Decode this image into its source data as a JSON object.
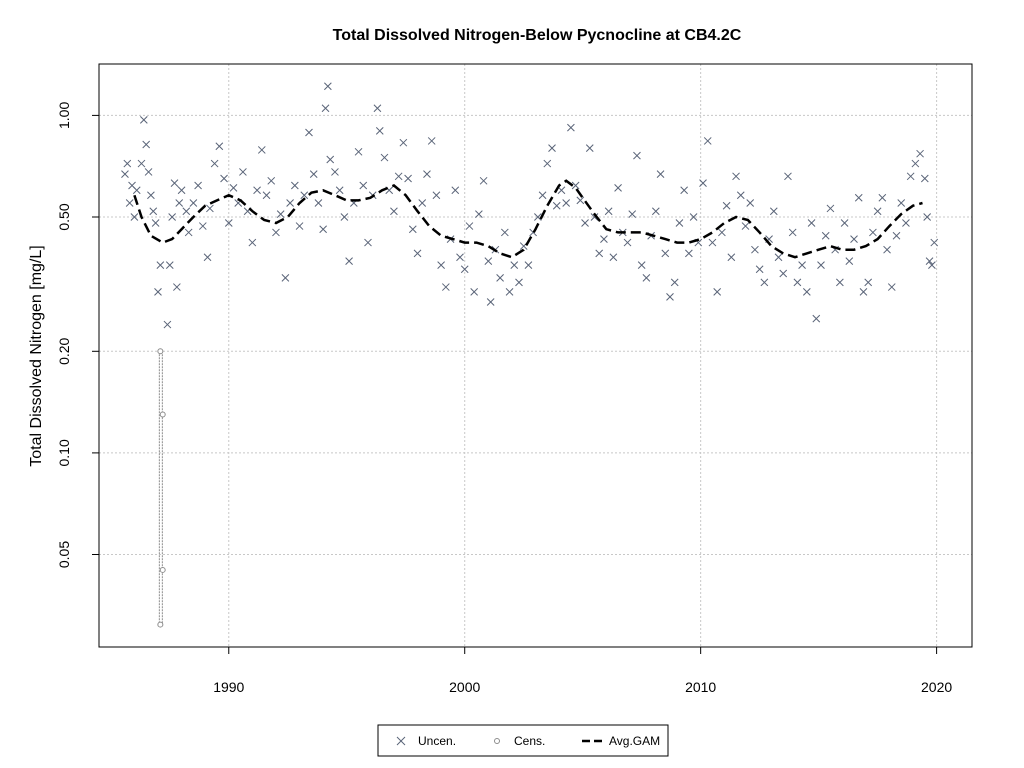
{
  "chart_data": {
    "type": "scatter",
    "title": "Total Dissolved Nitrogen-Below Pycnocline at CB4.2C",
    "xlabel": "",
    "ylabel": "Total Dissolved Nitrogen [mg/L]",
    "x_range": [
      1984.5,
      2021.5
    ],
    "y_range": [
      0.0266,
      1.42
    ],
    "y_scale": "log",
    "grid": true,
    "legend_position": "bottom-center",
    "x_ticks": [
      {
        "value": 1990,
        "label": "1990"
      },
      {
        "value": 2000,
        "label": "2000"
      },
      {
        "value": 2010,
        "label": "2010"
      },
      {
        "value": 2020,
        "label": "2020"
      }
    ],
    "y_ticks": [
      {
        "value": 0.05,
        "label": "0.05"
      },
      {
        "value": 0.1,
        "label": "0.10"
      },
      {
        "value": 0.2,
        "label": "0.20"
      },
      {
        "value": 0.5,
        "label": "0.50"
      },
      {
        "value": 1.0,
        "label": "1.00"
      }
    ],
    "legend": [
      "Uncen.",
      "Cens.",
      "Avg.GAM"
    ],
    "colors": {
      "uncensored": "#5a6478",
      "censored": "#8c8c8c",
      "gam": "#000000",
      "grid": "#c8c8c8"
    },
    "series": [
      {
        "name": "Uncen.",
        "marker": "x",
        "points": [
          [
            1985.6,
            0.67
          ],
          [
            1985.7,
            0.72
          ],
          [
            1985.8,
            0.55
          ],
          [
            1985.9,
            0.62
          ],
          [
            1986.0,
            0.5
          ],
          [
            1986.1,
            0.6
          ],
          [
            1986.3,
            0.72
          ],
          [
            1986.4,
            0.97
          ],
          [
            1986.5,
            0.82
          ],
          [
            1986.6,
            0.68
          ],
          [
            1986.7,
            0.58
          ],
          [
            1986.8,
            0.52
          ],
          [
            1986.9,
            0.48
          ],
          [
            1987.0,
            0.3
          ],
          [
            1987.1,
            0.36
          ],
          [
            1987.4,
            0.24
          ],
          [
            1987.5,
            0.36
          ],
          [
            1987.6,
            0.5
          ],
          [
            1987.7,
            0.63
          ],
          [
            1987.8,
            0.31
          ],
          [
            1987.9,
            0.55
          ],
          [
            1988.0,
            0.6
          ],
          [
            1988.2,
            0.52
          ],
          [
            1988.3,
            0.45
          ],
          [
            1988.5,
            0.55
          ],
          [
            1988.7,
            0.62
          ],
          [
            1988.9,
            0.47
          ],
          [
            1989.1,
            0.38
          ],
          [
            1989.2,
            0.53
          ],
          [
            1989.4,
            0.72
          ],
          [
            1989.6,
            0.81
          ],
          [
            1989.8,
            0.65
          ],
          [
            1990.0,
            0.48
          ],
          [
            1990.2,
            0.61
          ],
          [
            1990.4,
            0.55
          ],
          [
            1990.6,
            0.68
          ],
          [
            1990.8,
            0.52
          ],
          [
            1991.0,
            0.42
          ],
          [
            1991.2,
            0.6
          ],
          [
            1991.4,
            0.79
          ],
          [
            1991.6,
            0.58
          ],
          [
            1991.8,
            0.64
          ],
          [
            1992.0,
            0.45
          ],
          [
            1992.2,
            0.51
          ],
          [
            1992.4,
            0.33
          ],
          [
            1992.6,
            0.55
          ],
          [
            1992.8,
            0.62
          ],
          [
            1993.0,
            0.47
          ],
          [
            1993.2,
            0.58
          ],
          [
            1993.4,
            0.89
          ],
          [
            1993.6,
            0.67
          ],
          [
            1993.8,
            0.55
          ],
          [
            1994.0,
            0.46
          ],
          [
            1994.1,
            1.05
          ],
          [
            1994.2,
            1.22
          ],
          [
            1994.3,
            0.74
          ],
          [
            1994.5,
            0.68
          ],
          [
            1994.7,
            0.6
          ],
          [
            1994.9,
            0.5
          ],
          [
            1995.1,
            0.37
          ],
          [
            1995.3,
            0.55
          ],
          [
            1995.5,
            0.78
          ],
          [
            1995.7,
            0.62
          ],
          [
            1995.9,
            0.42
          ],
          [
            1996.1,
            0.58
          ],
          [
            1996.3,
            1.05
          ],
          [
            1996.4,
            0.9
          ],
          [
            1996.6,
            0.75
          ],
          [
            1996.8,
            0.6
          ],
          [
            1997.0,
            0.52
          ],
          [
            1997.2,
            0.66
          ],
          [
            1997.4,
            0.83
          ],
          [
            1997.6,
            0.65
          ],
          [
            1997.8,
            0.46
          ],
          [
            1998.0,
            0.39
          ],
          [
            1998.2,
            0.55
          ],
          [
            1998.4,
            0.67
          ],
          [
            1998.6,
            0.84
          ],
          [
            1998.8,
            0.58
          ],
          [
            1999.0,
            0.36
          ],
          [
            1999.2,
            0.31
          ],
          [
            1999.4,
            0.43
          ],
          [
            1999.6,
            0.6
          ],
          [
            1999.8,
            0.38
          ],
          [
            2000.0,
            0.35
          ],
          [
            2000.2,
            0.47
          ],
          [
            2000.4,
            0.3
          ],
          [
            2000.6,
            0.51
          ],
          [
            2000.8,
            0.64
          ],
          [
            2001.0,
            0.37
          ],
          [
            2001.1,
            0.28
          ],
          [
            2001.3,
            0.4
          ],
          [
            2001.5,
            0.33
          ],
          [
            2001.7,
            0.45
          ],
          [
            2001.9,
            0.3
          ],
          [
            2002.1,
            0.36
          ],
          [
            2002.3,
            0.32
          ],
          [
            2002.5,
            0.41
          ],
          [
            2002.7,
            0.36
          ],
          [
            2002.9,
            0.45
          ],
          [
            2003.1,
            0.5
          ],
          [
            2003.3,
            0.58
          ],
          [
            2003.5,
            0.72
          ],
          [
            2003.7,
            0.8
          ],
          [
            2003.9,
            0.54
          ],
          [
            2004.1,
            0.6
          ],
          [
            2004.3,
            0.55
          ],
          [
            2004.5,
            0.92
          ],
          [
            2004.7,
            0.62
          ],
          [
            2004.9,
            0.56
          ],
          [
            2005.1,
            0.48
          ],
          [
            2005.3,
            0.8
          ],
          [
            2005.5,
            0.5
          ],
          [
            2005.7,
            0.39
          ],
          [
            2005.9,
            0.43
          ],
          [
            2006.1,
            0.52
          ],
          [
            2006.3,
            0.38
          ],
          [
            2006.5,
            0.61
          ],
          [
            2006.7,
            0.45
          ],
          [
            2006.9,
            0.42
          ],
          [
            2007.1,
            0.51
          ],
          [
            2007.3,
            0.76
          ],
          [
            2007.5,
            0.36
          ],
          [
            2007.7,
            0.33
          ],
          [
            2007.9,
            0.44
          ],
          [
            2008.1,
            0.52
          ],
          [
            2008.3,
            0.67
          ],
          [
            2008.5,
            0.39
          ],
          [
            2008.7,
            0.29
          ],
          [
            2008.9,
            0.32
          ],
          [
            2009.1,
            0.48
          ],
          [
            2009.3,
            0.6
          ],
          [
            2009.5,
            0.39
          ],
          [
            2009.7,
            0.5
          ],
          [
            2009.9,
            0.42
          ],
          [
            2010.1,
            0.63
          ],
          [
            2010.3,
            0.84
          ],
          [
            2010.5,
            0.42
          ],
          [
            2010.7,
            0.3
          ],
          [
            2010.9,
            0.45
          ],
          [
            2011.1,
            0.54
          ],
          [
            2011.3,
            0.38
          ],
          [
            2011.5,
            0.66
          ],
          [
            2011.7,
            0.58
          ],
          [
            2011.9,
            0.47
          ],
          [
            2012.1,
            0.55
          ],
          [
            2012.3,
            0.4
          ],
          [
            2012.5,
            0.35
          ],
          [
            2012.7,
            0.32
          ],
          [
            2012.9,
            0.43
          ],
          [
            2013.1,
            0.52
          ],
          [
            2013.3,
            0.38
          ],
          [
            2013.5,
            0.34
          ],
          [
            2013.7,
            0.66
          ],
          [
            2013.9,
            0.45
          ],
          [
            2014.1,
            0.32
          ],
          [
            2014.3,
            0.36
          ],
          [
            2014.5,
            0.3
          ],
          [
            2014.7,
            0.48
          ],
          [
            2014.9,
            0.25
          ],
          [
            2015.1,
            0.36
          ],
          [
            2015.3,
            0.44
          ],
          [
            2015.5,
            0.53
          ],
          [
            2015.7,
            0.4
          ],
          [
            2015.9,
            0.32
          ],
          [
            2016.1,
            0.48
          ],
          [
            2016.3,
            0.37
          ],
          [
            2016.5,
            0.43
          ],
          [
            2016.7,
            0.57
          ],
          [
            2016.9,
            0.3
          ],
          [
            2017.1,
            0.32
          ],
          [
            2017.3,
            0.45
          ],
          [
            2017.5,
            0.52
          ],
          [
            2017.7,
            0.57
          ],
          [
            2017.9,
            0.4
          ],
          [
            2018.1,
            0.31
          ],
          [
            2018.3,
            0.44
          ],
          [
            2018.5,
            0.55
          ],
          [
            2018.7,
            0.48
          ],
          [
            2018.9,
            0.66
          ],
          [
            2019.1,
            0.72
          ],
          [
            2019.3,
            0.77
          ],
          [
            2019.5,
            0.65
          ],
          [
            2019.6,
            0.5
          ],
          [
            2019.7,
            0.37
          ],
          [
            2019.8,
            0.36
          ],
          [
            2019.9,
            0.42
          ]
        ]
      },
      {
        "name": "Cens.",
        "marker": "circle",
        "points": [
          [
            1987.1,
            0.2
          ],
          [
            1987.2,
            0.13
          ],
          [
            1987.2,
            0.045
          ],
          [
            1987.1,
            0.031
          ]
        ]
      },
      {
        "name": "Avg.GAM",
        "marker": "line",
        "points": [
          [
            1986.0,
            0.58
          ],
          [
            1986.3,
            0.5
          ],
          [
            1986.7,
            0.44
          ],
          [
            1987.2,
            0.42
          ],
          [
            1987.6,
            0.43
          ],
          [
            1988.0,
            0.46
          ],
          [
            1988.5,
            0.5
          ],
          [
            1989.0,
            0.54
          ],
          [
            1989.5,
            0.56
          ],
          [
            1990.0,
            0.58
          ],
          [
            1990.5,
            0.56
          ],
          [
            1991.0,
            0.52
          ],
          [
            1991.5,
            0.49
          ],
          [
            1992.0,
            0.48
          ],
          [
            1992.5,
            0.5
          ],
          [
            1993.0,
            0.55
          ],
          [
            1993.5,
            0.59
          ],
          [
            1994.0,
            0.6
          ],
          [
            1994.5,
            0.58
          ],
          [
            1995.0,
            0.56
          ],
          [
            1995.5,
            0.56
          ],
          [
            1996.0,
            0.57
          ],
          [
            1996.5,
            0.6
          ],
          [
            1997.0,
            0.62
          ],
          [
            1997.5,
            0.58
          ],
          [
            1998.0,
            0.52
          ],
          [
            1998.5,
            0.47
          ],
          [
            1999.0,
            0.44
          ],
          [
            1999.5,
            0.43
          ],
          [
            2000.0,
            0.42
          ],
          [
            2000.5,
            0.42
          ],
          [
            2001.0,
            0.41
          ],
          [
            2001.5,
            0.39
          ],
          [
            2002.0,
            0.38
          ],
          [
            2002.5,
            0.4
          ],
          [
            2003.0,
            0.46
          ],
          [
            2003.5,
            0.54
          ],
          [
            2004.0,
            0.62
          ],
          [
            2004.3,
            0.64
          ],
          [
            2004.7,
            0.61
          ],
          [
            2005.0,
            0.57
          ],
          [
            2005.5,
            0.51
          ],
          [
            2006.0,
            0.46
          ],
          [
            2006.5,
            0.45
          ],
          [
            2007.0,
            0.45
          ],
          [
            2007.5,
            0.45
          ],
          [
            2008.0,
            0.44
          ],
          [
            2008.5,
            0.43
          ],
          [
            2009.0,
            0.42
          ],
          [
            2009.5,
            0.42
          ],
          [
            2010.0,
            0.43
          ],
          [
            2010.5,
            0.45
          ],
          [
            2011.0,
            0.48
          ],
          [
            2011.5,
            0.5
          ],
          [
            2012.0,
            0.49
          ],
          [
            2012.5,
            0.45
          ],
          [
            2013.0,
            0.41
          ],
          [
            2013.5,
            0.39
          ],
          [
            2014.0,
            0.38
          ],
          [
            2014.5,
            0.39
          ],
          [
            2015.0,
            0.4
          ],
          [
            2015.5,
            0.41
          ],
          [
            2016.0,
            0.4
          ],
          [
            2016.5,
            0.4
          ],
          [
            2017.0,
            0.41
          ],
          [
            2017.5,
            0.43
          ],
          [
            2018.0,
            0.47
          ],
          [
            2018.5,
            0.51
          ],
          [
            2019.0,
            0.54
          ],
          [
            2019.4,
            0.55
          ]
        ]
      }
    ]
  }
}
